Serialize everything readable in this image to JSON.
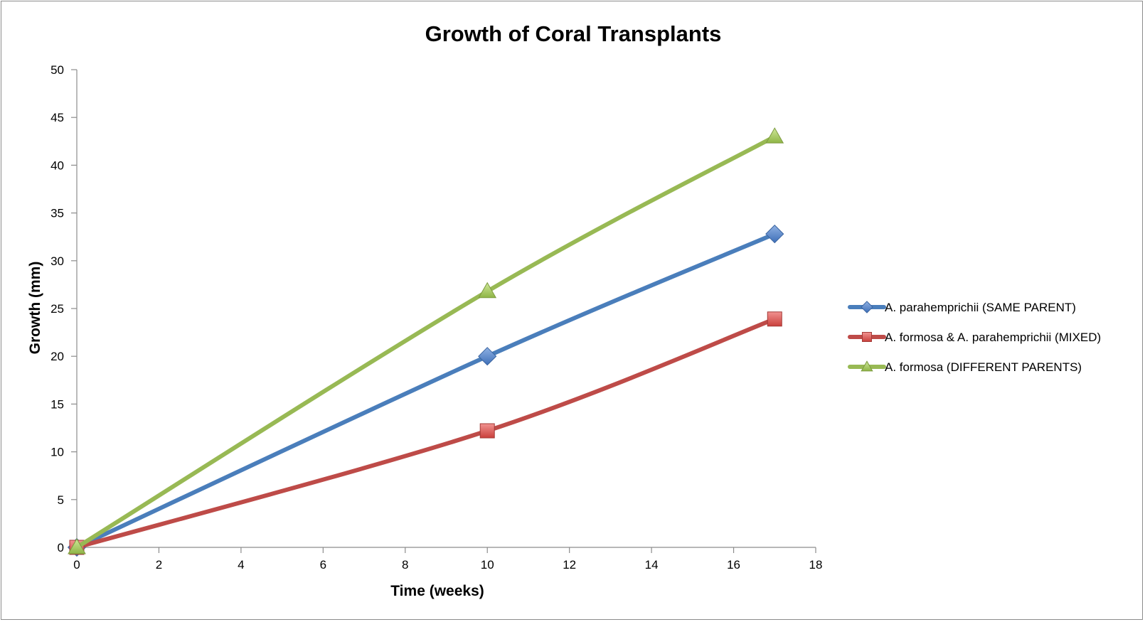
{
  "chart_data": {
    "type": "line",
    "title": "Growth of Coral Transplants",
    "xlabel": "Time (weeks)",
    "ylabel": "Growth (mm)",
    "xlim": [
      0,
      18
    ],
    "ylim": [
      0,
      50
    ],
    "x_ticks": [
      "0",
      "2",
      "4",
      "6",
      "8",
      "10",
      "12",
      "14",
      "16",
      "18"
    ],
    "y_ticks": [
      "0",
      "5",
      "10",
      "15",
      "20",
      "25",
      "30",
      "35",
      "40",
      "45",
      "50"
    ],
    "grid": false,
    "legend_position": "right",
    "series": [
      {
        "name": "A. parahemprichii (SAME PARENT)",
        "color": "#4a7ebb",
        "marker": "diamond",
        "x": [
          0,
          10,
          17
        ],
        "y": [
          0,
          20,
          32.8
        ]
      },
      {
        "name": "A. formosa & A. parahemprichii (MIXED)",
        "color": "#be4b48",
        "marker": "square",
        "x": [
          0,
          10,
          17
        ],
        "y": [
          0,
          12.2,
          23.9
        ]
      },
      {
        "name": "A. formosa (DIFFERENT PARENTS)",
        "color": "#98b954",
        "marker": "triangle",
        "x": [
          0,
          10,
          17
        ],
        "y": [
          0,
          26.8,
          43
        ]
      }
    ]
  }
}
